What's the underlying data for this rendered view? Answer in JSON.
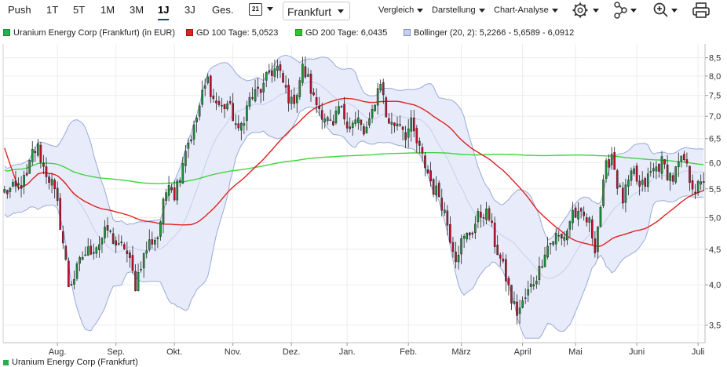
{
  "toolbar": {
    "ranges": [
      "Push",
      "1T",
      "5T",
      "1M",
      "3M",
      "1J",
      "3J",
      "Ges."
    ],
    "active_range": "1J",
    "calendar_label": "21",
    "exchange": "Frankfurt",
    "menus": [
      "Vergleich",
      "Darstellung",
      "Chart-Analyse"
    ],
    "icons": [
      "settings-icon",
      "network-icon",
      "zoom-icon",
      "print-icon"
    ]
  },
  "legend": [
    {
      "label": "Uranium Energy Corp (Frankfurt) (in EUR)",
      "color": "#22b14c"
    },
    {
      "label": "GD 100 Tage: 5,0523",
      "color": "#e0211f"
    },
    {
      "label": "GD 200 Tage: 6,0435",
      "color": "#2dc72d"
    },
    {
      "label": "Bollinger (20, 2): 5,2266 - 5,6589 - 6,0912",
      "color": "#a9b9e0"
    }
  ],
  "colors": {
    "up": "#1a9a3c",
    "down": "#c8102e",
    "gd100": "#e0211f",
    "gd200": "#3ed43e",
    "band_fill": "#e8ecfa",
    "band_line": "#9aaad6"
  },
  "bottom_text": "Uranium Energy Corp (Frankfurt)",
  "chart_data": {
    "type": "candlestick",
    "y_scale": "log",
    "y_ticks": [
      "3,5",
      "4,0",
      "4,5",
      "5,0",
      "5,5",
      "6,0",
      "6,5",
      "7,0",
      "7,5",
      "8,0",
      "8,5"
    ],
    "y_tick_values": [
      3.5,
      4.0,
      4.5,
      5.0,
      5.5,
      6.0,
      6.5,
      7.0,
      7.5,
      8.0,
      8.5
    ],
    "ylim": [
      3.3,
      8.9
    ],
    "x_months": [
      "Aug.",
      "Sep.",
      "Okt.",
      "Nov.",
      "Dez.",
      "Jan.",
      "Feb.",
      "März",
      "April",
      "Mai",
      "Juni",
      "Juli"
    ],
    "x_month_day_index": [
      19,
      40,
      61,
      82,
      103,
      123,
      145,
      164,
      186,
      205,
      227,
      249
    ],
    "n_days": 252,
    "close_keyframes": [
      [
        0,
        5.45
      ],
      [
        4,
        5.5
      ],
      [
        8,
        5.7
      ],
      [
        10,
        6.2
      ],
      [
        12,
        6.3
      ],
      [
        14,
        5.9
      ],
      [
        17,
        5.6
      ],
      [
        19,
        5.2
      ],
      [
        21,
        4.6
      ],
      [
        23,
        4.0
      ],
      [
        25,
        4.1
      ],
      [
        28,
        4.4
      ],
      [
        31,
        4.5
      ],
      [
        34,
        4.6
      ],
      [
        37,
        4.8
      ],
      [
        39,
        4.65
      ],
      [
        41,
        4.5
      ],
      [
        43,
        4.55
      ],
      [
        45,
        4.3
      ],
      [
        47,
        4.0
      ],
      [
        49,
        4.3
      ],
      [
        52,
        4.6
      ],
      [
        55,
        4.7
      ],
      [
        57,
        5.2
      ],
      [
        59,
        5.7
      ],
      [
        61,
        5.4
      ],
      [
        63,
        5.8
      ],
      [
        65,
        6.3
      ],
      [
        68,
        6.7
      ],
      [
        71,
        7.5
      ],
      [
        73,
        7.9
      ],
      [
        75,
        7.4
      ],
      [
        78,
        7.2
      ],
      [
        80,
        7.3
      ],
      [
        82,
        7.0
      ],
      [
        84,
        6.6
      ],
      [
        86,
        7.0
      ],
      [
        88,
        7.4
      ],
      [
        91,
        7.6
      ],
      [
        93,
        7.7
      ],
      [
        95,
        8.1
      ],
      [
        98,
        8.2
      ],
      [
        100,
        7.8
      ],
      [
        103,
        7.3
      ],
      [
        105,
        7.6
      ],
      [
        107,
        8.2
      ],
      [
        109,
        7.9
      ],
      [
        111,
        7.4
      ],
      [
        113,
        7.2
      ],
      [
        116,
        6.9
      ],
      [
        118,
        6.7
      ],
      [
        120,
        7.2
      ],
      [
        122,
        7.0
      ],
      [
        124,
        6.8
      ],
      [
        127,
        6.9
      ],
      [
        129,
        6.6
      ],
      [
        131,
        6.8
      ],
      [
        133,
        7.4
      ],
      [
        135,
        7.9
      ],
      [
        137,
        7.0
      ],
      [
        139,
        6.8
      ],
      [
        142,
        6.9
      ],
      [
        144,
        6.6
      ],
      [
        146,
        6.8
      ],
      [
        148,
        6.4
      ],
      [
        150,
        6.1
      ],
      [
        152,
        5.8
      ],
      [
        154,
        5.5
      ],
      [
        156,
        5.4
      ],
      [
        158,
        5.1
      ],
      [
        160,
        4.7
      ],
      [
        162,
        4.4
      ],
      [
        164,
        4.6
      ],
      [
        166,
        4.7
      ],
      [
        168,
        4.8
      ],
      [
        170,
        5.0
      ],
      [
        172,
        5.1
      ],
      [
        174,
        5.0
      ],
      [
        176,
        4.6
      ],
      [
        178,
        4.35
      ],
      [
        180,
        4.1
      ],
      [
        182,
        3.8
      ],
      [
        184,
        3.65
      ],
      [
        186,
        3.75
      ],
      [
        188,
        3.9
      ],
      [
        190,
        4.05
      ],
      [
        192,
        4.2
      ],
      [
        194,
        4.5
      ],
      [
        196,
        4.6
      ],
      [
        198,
        4.7
      ],
      [
        200,
        4.65
      ],
      [
        202,
        4.8
      ],
      [
        204,
        5.1
      ],
      [
        206,
        5.0
      ],
      [
        208,
        5.0
      ],
      [
        210,
        4.9
      ],
      [
        212,
        4.55
      ],
      [
        214,
        5.2
      ],
      [
        216,
        5.9
      ],
      [
        218,
        6.2
      ],
      [
        220,
        5.6
      ],
      [
        222,
        5.3
      ],
      [
        224,
        5.6
      ],
      [
        226,
        5.8
      ],
      [
        228,
        5.5
      ],
      [
        230,
        5.6
      ],
      [
        232,
        5.8
      ],
      [
        234,
        5.9
      ],
      [
        236,
        6.0
      ],
      [
        238,
        5.8
      ],
      [
        240,
        5.7
      ],
      [
        242,
        5.95
      ],
      [
        244,
        6.05
      ],
      [
        246,
        5.7
      ],
      [
        248,
        5.5
      ],
      [
        250,
        5.55
      ],
      [
        251,
        5.7
      ]
    ]
  }
}
